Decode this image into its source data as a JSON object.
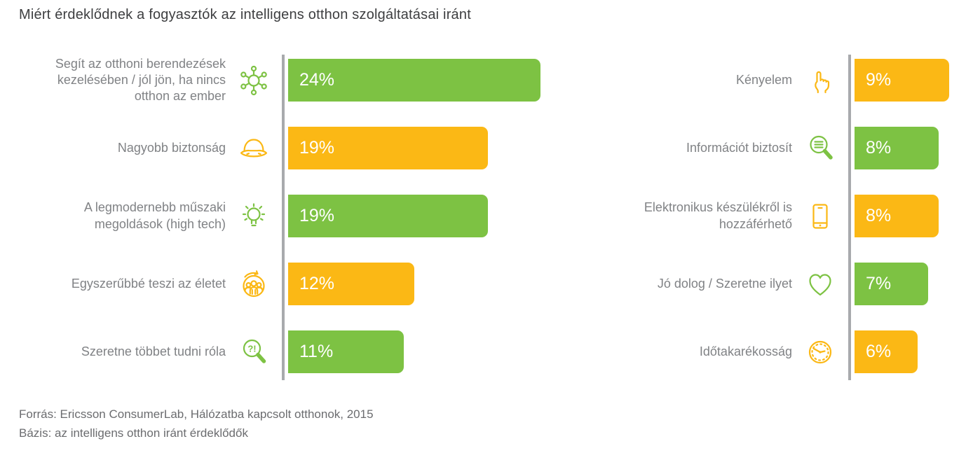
{
  "colors": {
    "green": "#7DC243",
    "orange": "#FBB815",
    "axis": "#A8AAAD",
    "label": "#808285",
    "title": "#3D3E40",
    "footer": "#6B6C6F"
  },
  "footer": {
    "source": "Forrás: Ericsson ConsumerLab, Hálózatba kapcsolt otthonok, 2015",
    "basis": "Bázis: az intelligens otthon iránt érdeklődők"
  },
  "chart_data": {
    "type": "bar",
    "orientation": "horizontal",
    "title": "Miért érdeklődnek a fogyasztók az intelligens otthon szolgáltatásai iránt",
    "value_unit": "%",
    "legend": "none",
    "grid": false,
    "panels": [
      {
        "name": "left",
        "rows": [
          {
            "label": "Segít az otthoni berendezések kezelésében / jól jön, ha nincs otthon az ember",
            "value": 24,
            "display": "24%",
            "color": "green",
            "icon": "network-hub-icon"
          },
          {
            "label": "Nagyobb biztonság",
            "value": 19,
            "display": "19%",
            "color": "orange",
            "icon": "safety-helmet-icon"
          },
          {
            "label": "A legmodernebb műszaki megoldások (high tech)",
            "value": 19,
            "display": "19%",
            "color": "green",
            "icon": "lightbulb-icon"
          },
          {
            "label": "Egyszerűbbé teszi az életet",
            "value": 12,
            "display": "12%",
            "color": "orange",
            "icon": "people-circle-arrow-icon"
          },
          {
            "label": "Szeretne többet tudni róla",
            "value": 11,
            "display": "11%",
            "color": "green",
            "icon": "magnifier-question-icon"
          }
        ]
      },
      {
        "name": "right",
        "rows": [
          {
            "label": "Kényelem",
            "value": 9,
            "display": "9%",
            "color": "orange",
            "icon": "pointing-hand-icon"
          },
          {
            "label": "Információt biztosít",
            "value": 8,
            "display": "8%",
            "color": "green",
            "icon": "magnifier-text-icon"
          },
          {
            "label": "Elektronikus készülékről is hozzáférhető",
            "value": 8,
            "display": "8%",
            "color": "orange",
            "icon": "smartphone-icon"
          },
          {
            "label": "Jó dolog / Szeretne ilyet",
            "value": 7,
            "display": "7%",
            "color": "green",
            "icon": "heart-icon"
          },
          {
            "label": "Időtakarékosság",
            "value": 6,
            "display": "6%",
            "color": "orange",
            "icon": "clock-icon"
          }
        ]
      }
    ]
  }
}
